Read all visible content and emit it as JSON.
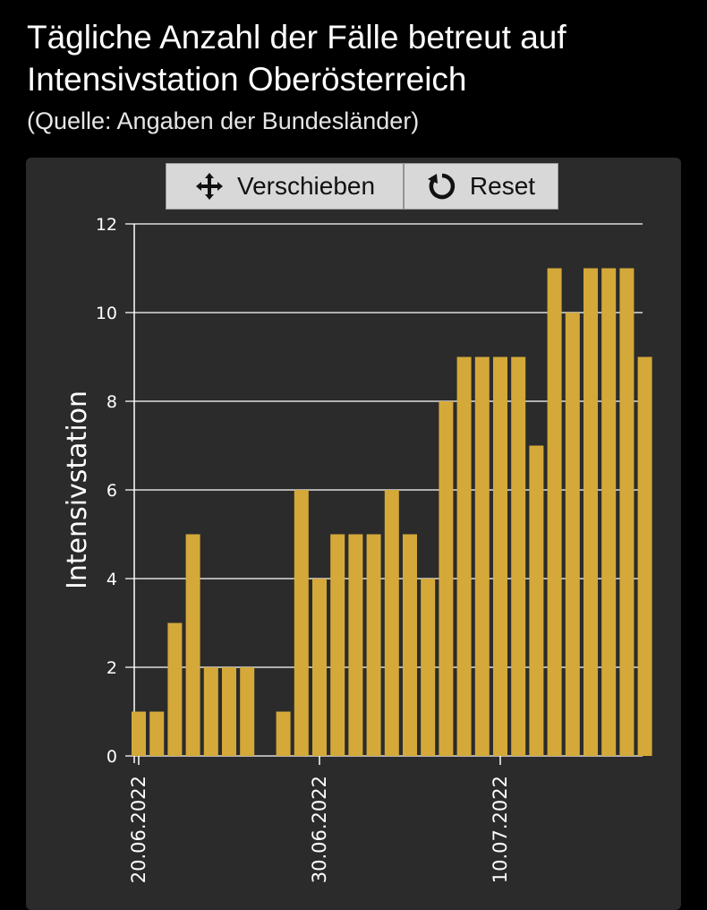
{
  "header": {
    "title": "Tägliche Anzahl der Fälle betreut auf Intensivstation Oberösterreich",
    "subtitle": "(Quelle: Angaben der Bundesländer)"
  },
  "toolbar": {
    "move_label": "Verschieben",
    "move_icon": "move-arrows-icon",
    "reset_label": "Reset",
    "reset_icon": "reset-arrow-icon"
  },
  "colors": {
    "background": "#000000",
    "panel": "#2b2b2b",
    "bar": "#d4a93a",
    "grid": "#ffffff"
  },
  "chart_data": {
    "type": "bar",
    "ylabel": "Intensivstation",
    "xlabel": "",
    "ylim": [
      0,
      12
    ],
    "yticks": [
      0,
      2,
      4,
      6,
      8,
      10,
      12
    ],
    "grid": true,
    "x_tick_labels": [
      {
        "index": 0,
        "label": "20.06.2022"
      },
      {
        "index": 10,
        "label": "30.06.2022"
      },
      {
        "index": 20,
        "label": "10.07.2022"
      }
    ],
    "categories": [
      "20.06.2022",
      "21.06.2022",
      "22.06.2022",
      "23.06.2022",
      "24.06.2022",
      "25.06.2022",
      "26.06.2022",
      "27.06.2022",
      "28.06.2022",
      "29.06.2022",
      "30.06.2022",
      "01.07.2022",
      "02.07.2022",
      "03.07.2022",
      "04.07.2022",
      "05.07.2022",
      "06.07.2022",
      "07.07.2022",
      "08.07.2022",
      "09.07.2022",
      "10.07.2022",
      "11.07.2022",
      "12.07.2022",
      "13.07.2022",
      "14.07.2022",
      "15.07.2022",
      "16.07.2022",
      "17.07.2022",
      "18.07.2022"
    ],
    "values": [
      1,
      1,
      3,
      5,
      2,
      2,
      2,
      0,
      1,
      6,
      4,
      5,
      5,
      5,
      6,
      5,
      4,
      8,
      9,
      9,
      9,
      9,
      7,
      11,
      10,
      11,
      11,
      11,
      9
    ]
  }
}
